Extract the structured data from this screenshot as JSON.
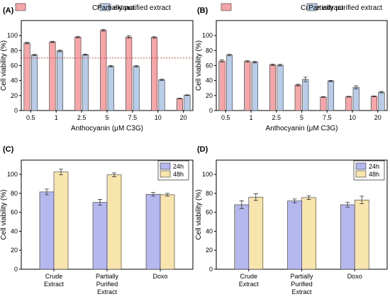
{
  "colors": {
    "crude": "#f4a6a8",
    "purified": "#b9cde9",
    "h24": "#b5b7ef",
    "h48": "#f8e4ad",
    "reference_line": "#d94848"
  },
  "chart_data": [
    {
      "panel": "(A)",
      "type": "bar",
      "categories": [
        "0.5",
        "1",
        "2.5",
        "5",
        "7.5",
        "10",
        "20"
      ],
      "series": [
        {
          "name": "Crude extract",
          "color_key": "crude",
          "values": [
            90,
            91.5,
            98,
            107,
            98,
            97.5,
            16
          ],
          "errors": [
            1,
            0.8,
            1,
            1.2,
            1.5,
            1,
            0.5
          ]
        },
        {
          "name": "Partially purified extract",
          "color_key": "purified",
          "values": [
            74,
            79.5,
            74.5,
            59,
            59,
            41,
            20.5
          ],
          "errors": [
            0.8,
            1,
            0.8,
            1,
            1,
            0.8,
            0.5
          ]
        }
      ],
      "xlabel": "Anthocyanin (μM C3G)",
      "ylabel": "Cell viability (%)",
      "ylim": [
        0,
        120
      ],
      "yticks": [
        0,
        20,
        40,
        60,
        80,
        100
      ],
      "reference_line_y": 70,
      "legend": "top"
    },
    {
      "panel": "(B)",
      "type": "bar",
      "categories": [
        "0.5",
        "1",
        "2.5",
        "5",
        "7.5",
        "10",
        "20"
      ],
      "series": [
        {
          "name": "Crude extract",
          "color_key": "crude",
          "values": [
            66,
            65.5,
            61,
            34,
            18,
            18.5,
            19
          ],
          "errors": [
            1.5,
            1,
            1,
            1,
            0.5,
            0.5,
            0.5
          ]
        },
        {
          "name": "Partially purified extract",
          "color_key": "purified",
          "values": [
            74,
            64.5,
            60.5,
            41.5,
            39.5,
            31,
            24.5
          ],
          "errors": [
            1,
            1,
            1,
            3,
            0.8,
            2,
            1
          ]
        }
      ],
      "xlabel": "Anthocyanin (μM C3G)",
      "ylabel": "Cell viability (%)",
      "ylim": [
        0,
        120
      ],
      "yticks": [
        0,
        20,
        40,
        60,
        80,
        100
      ],
      "legend": "top"
    },
    {
      "panel": "(C)",
      "type": "bar",
      "categories": [
        [
          "Crude",
          "Extract"
        ],
        [
          "Partially",
          "Purified",
          "Extract"
        ],
        [
          "Doxo"
        ]
      ],
      "series": [
        {
          "name": "24h",
          "color_key": "h24",
          "values": [
            81.5,
            70.5,
            79
          ],
          "errors": [
            3,
            3,
            2
          ]
        },
        {
          "name": "48h",
          "color_key": "h48",
          "values": [
            102.5,
            99.5,
            78.5
          ],
          "errors": [
            3,
            2,
            1.5
          ]
        }
      ],
      "ylabel": "Cell viability (%)",
      "ylim": [
        0,
        115
      ],
      "yticks": [
        0,
        20,
        40,
        60,
        80,
        100
      ],
      "legend": "top-right"
    },
    {
      "panel": "(D)",
      "type": "bar",
      "categories": [
        [
          "Crude",
          "Extract"
        ],
        [
          "Partially",
          "Purified",
          "Extract"
        ],
        [
          "Doxo"
        ]
      ],
      "series": [
        {
          "name": "24h",
          "color_key": "h24",
          "values": [
            68,
            72,
            68
          ],
          "errors": [
            4,
            2,
            2.5
          ]
        },
        {
          "name": "48h",
          "color_key": "h48",
          "values": [
            76,
            75.5,
            73
          ],
          "errors": [
            3.5,
            2,
            4
          ]
        }
      ],
      "ylabel": "Cell viability (%)",
      "ylim": [
        0,
        115
      ],
      "yticks": [
        0,
        20,
        40,
        60,
        80,
        100
      ],
      "legend": "top-right"
    }
  ]
}
